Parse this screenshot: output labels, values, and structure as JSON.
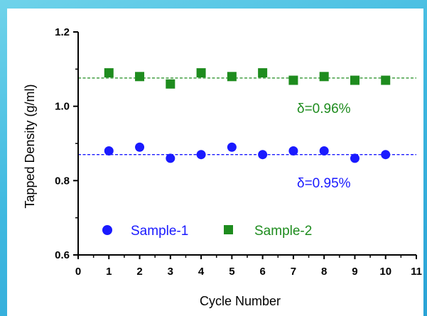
{
  "chart_data": {
    "type": "scatter",
    "title": "",
    "xlabel": "Cycle Number",
    "ylabel": "Tapped Density (g/ml)",
    "xlim": [
      0,
      11
    ],
    "ylim": [
      0.6,
      1.2
    ],
    "x_ticks": [
      "0",
      "1",
      "2",
      "3",
      "4",
      "5",
      "6",
      "7",
      "8",
      "9",
      "10",
      "11"
    ],
    "y_ticks": [
      "0.6",
      "0.8",
      "1.0",
      "1.2"
    ],
    "legend_position": "bottom-left",
    "series": [
      {
        "name": "Sample-1",
        "marker": "circle",
        "color": "#1a1aff",
        "x": [
          1,
          2,
          3,
          4,
          5,
          6,
          7,
          8,
          9,
          10
        ],
        "y": [
          0.88,
          0.89,
          0.86,
          0.87,
          0.89,
          0.87,
          0.88,
          0.88,
          0.86,
          0.87
        ],
        "mean_line": 0.87,
        "annotation": "δ=0.95%"
      },
      {
        "name": "Sample-2",
        "marker": "square",
        "color": "#1e8c1e",
        "x": [
          1,
          2,
          3,
          4,
          5,
          6,
          7,
          8,
          9,
          10
        ],
        "y": [
          1.09,
          1.08,
          1.06,
          1.09,
          1.08,
          1.09,
          1.07,
          1.08,
          1.07,
          1.07
        ],
        "mean_line": 1.076,
        "annotation": "δ=0.96%"
      }
    ]
  }
}
